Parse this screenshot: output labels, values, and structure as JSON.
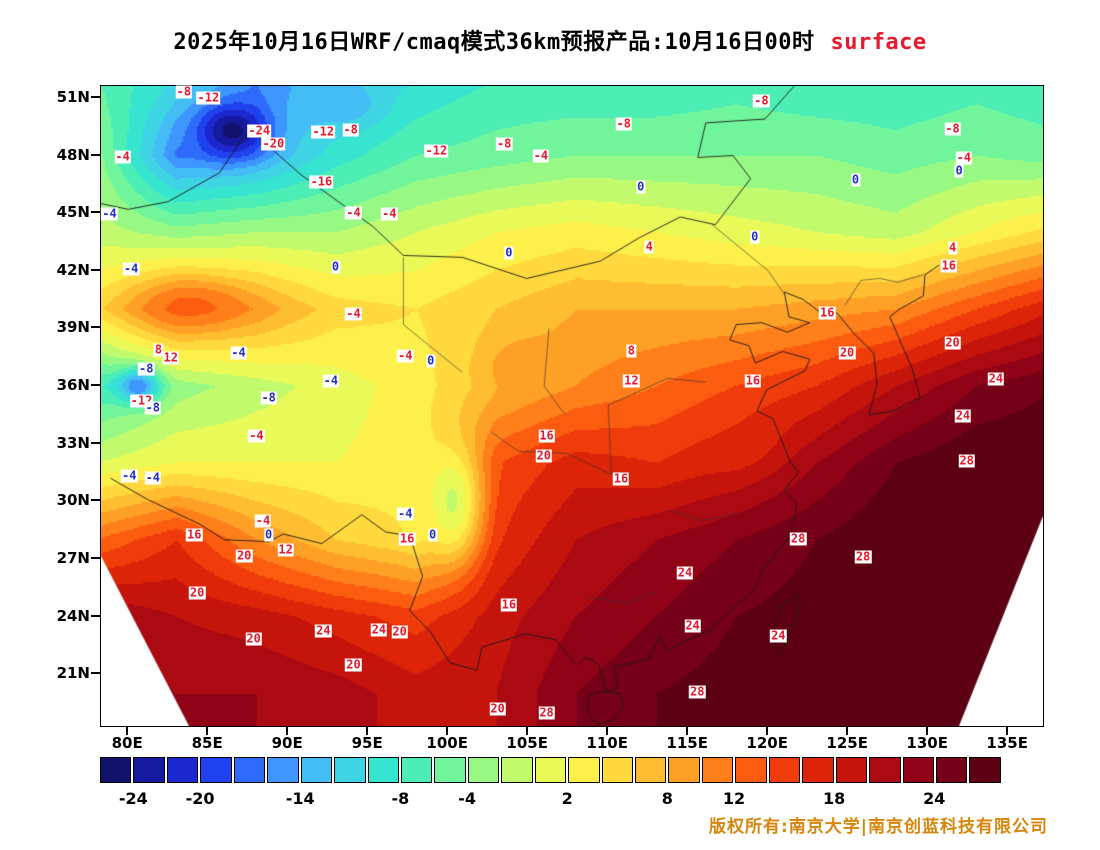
{
  "title": {
    "main": "2025年10月16日WRF/cmaq模式36km预报产品:10月16日00时",
    "tag": "surface"
  },
  "colors": {
    "title_tag": "#e8192c",
    "copyright": "#d8860b",
    "label_red": "#e8192c",
    "label_blue": "#2230cf"
  },
  "axes": {
    "lat_ticks": [
      "51N",
      "48N",
      "45N",
      "42N",
      "39N",
      "36N",
      "33N",
      "30N",
      "27N",
      "24N",
      "21N"
    ],
    "lon_ticks": [
      "80E",
      "85E",
      "90E",
      "95E",
      "100E",
      "105E",
      "110E",
      "115E",
      "120E",
      "125E",
      "130E",
      "135E"
    ]
  },
  "colorbar": {
    "tick_values": [
      -24,
      -20,
      -14,
      -8,
      -4,
      2,
      8,
      12,
      18,
      24
    ],
    "vmin": -26,
    "vmax": 28,
    "step": 2
  },
  "chart_data": {
    "type": "heatmap",
    "title": "2025年10月16日WRF/cmaq模式36km预报产品:10月16日00时 surface",
    "variable": "surface temperature contour field",
    "lon_range_labels": [
      80,
      135
    ],
    "lat_range_labels": [
      21,
      51
    ],
    "levels_min": -26,
    "levels_max": 28,
    "levels_step": 2,
    "palette": [
      "#10126b",
      "#161a9e",
      "#1c27cf",
      "#2041ee",
      "#2f6bfb",
      "#3e96ff",
      "#44bdf5",
      "#3fd4e4",
      "#37e4cf",
      "#4deeb5",
      "#70f59c",
      "#97f984",
      "#c2fa6e",
      "#e9f957",
      "#fdf04a",
      "#ffd93e",
      "#ffbe31",
      "#ffa026",
      "#ff7f1a",
      "#fb5c10",
      "#ef3c0a",
      "#dc2408",
      "#c5140c",
      "#ab0a12",
      "#900317",
      "#760017",
      "#5e0013"
    ],
    "grid": {
      "lons": [
        78,
        83,
        88,
        93,
        98,
        103,
        108,
        113,
        118,
        123,
        128,
        133,
        138
      ],
      "lats": [
        52,
        48,
        44,
        40,
        36,
        32,
        28,
        24,
        20
      ],
      "temps": [
        [
          -6,
          -10,
          -16,
          -12,
          -10,
          -8,
          -8,
          -8,
          -7,
          -8,
          -8,
          -7,
          -8
        ],
        [
          -3,
          -16,
          -14,
          -9,
          -6,
          -5,
          -4,
          -4,
          -4,
          -4,
          -5,
          -4,
          -5
        ],
        [
          -1,
          -3,
          -2,
          -2,
          0,
          2,
          3,
          2,
          1,
          0,
          -1,
          2,
          5
        ],
        [
          5,
          11,
          9,
          5,
          4,
          6,
          8,
          8,
          8,
          9,
          10,
          14,
          18
        ],
        [
          -8,
          -3,
          -1,
          1,
          3,
          7,
          10,
          12,
          14,
          16,
          20,
          24,
          26
        ],
        [
          0,
          2,
          2,
          2,
          3,
          14,
          17,
          16,
          18,
          22,
          26,
          28,
          28
        ],
        [
          12,
          16,
          10,
          6,
          4,
          16,
          20,
          22,
          24,
          26,
          28,
          28,
          28
        ],
        [
          22,
          20,
          19,
          17,
          15,
          19,
          22,
          24,
          26,
          27,
          28,
          28,
          28
        ],
        [
          24,
          22,
          22,
          21,
          19,
          20,
          24,
          26,
          27,
          28,
          28,
          28,
          28
        ]
      ]
    },
    "spots": [
      {
        "lon": 86.5,
        "lat": 49.3,
        "rx": 2.2,
        "ry": 1.4,
        "v": -26,
        "w": 0.9
      },
      {
        "lon": 93.5,
        "lat": 50.6,
        "rx": 2.4,
        "ry": 1.2,
        "v": -14,
        "w": 0.8
      },
      {
        "lon": 80.6,
        "lat": 36.0,
        "rx": 1.3,
        "ry": 0.9,
        "v": -17,
        "w": 0.9
      },
      {
        "lon": 84.0,
        "lat": 40.2,
        "rx": 3.4,
        "ry": 1.3,
        "v": 13,
        "w": 0.85
      },
      {
        "lon": 100.3,
        "lat": 30.0,
        "rx": 1.7,
        "ry": 2.9,
        "v": -2,
        "w": 0.85
      },
      {
        "lon": 104.5,
        "lat": 37.0,
        "rx": 2.2,
        "ry": 1.4,
        "v": 11,
        "w": 0.6
      },
      {
        "lon": 118.5,
        "lat": 33.0,
        "rx": 2.5,
        "ry": 1.6,
        "v": 16,
        "w": 0.5
      }
    ],
    "contour_labels": [
      [
        "-8",
        8.8,
        1.0,
        "r"
      ],
      [
        "-12",
        11.4,
        1.9,
        "r"
      ],
      [
        "-24",
        16.8,
        7.0,
        "r"
      ],
      [
        "-20",
        18.3,
        9.1,
        "r"
      ],
      [
        "-12",
        23.6,
        7.2,
        "r"
      ],
      [
        "-8",
        26.5,
        6.9,
        "r"
      ],
      [
        "-12",
        35.6,
        10.2,
        "r"
      ],
      [
        "-8",
        42.8,
        9.1,
        "r"
      ],
      [
        "-4",
        46.7,
        10.9,
        "r"
      ],
      [
        "-8",
        55.5,
        5.9,
        "r"
      ],
      [
        "-8",
        70.1,
        2.3,
        "r"
      ],
      [
        "-8",
        90.4,
        6.7,
        "r"
      ],
      [
        "-4",
        2.3,
        11.1,
        "r"
      ],
      [
        "-16",
        23.4,
        15.0,
        "r"
      ],
      [
        "-4",
        0.9,
        20.0,
        "b"
      ],
      [
        "0",
        57.3,
        15.8,
        "b"
      ],
      [
        "0",
        80.1,
        14.7,
        "b"
      ],
      [
        "-4",
        91.6,
        11.3,
        "r"
      ],
      [
        "0",
        91.1,
        13.3,
        "b"
      ],
      [
        "-4",
        26.8,
        19.8,
        "r"
      ],
      [
        "-4",
        30.6,
        20.0,
        "r"
      ],
      [
        "0",
        43.3,
        26.1,
        "b"
      ],
      [
        "4",
        58.2,
        25.2,
        "r"
      ],
      [
        "0",
        69.4,
        23.6,
        "b"
      ],
      [
        "4",
        90.4,
        25.3,
        "r"
      ],
      [
        "16",
        90.0,
        28.1,
        "r"
      ],
      [
        "-4",
        3.2,
        28.6,
        "b"
      ],
      [
        "0",
        24.9,
        28.3,
        "b"
      ],
      [
        "-4",
        26.8,
        35.6,
        "r"
      ],
      [
        "8",
        6.1,
        41.3,
        "r"
      ],
      [
        "12",
        7.4,
        42.5,
        "r"
      ],
      [
        "-4",
        14.6,
        41.7,
        "b"
      ],
      [
        "-4",
        32.3,
        42.2,
        "r"
      ],
      [
        "0",
        35.0,
        43.0,
        "b"
      ],
      [
        "8",
        56.3,
        41.4,
        "r"
      ],
      [
        "16",
        77.1,
        35.5,
        "r"
      ],
      [
        "20",
        79.2,
        41.7,
        "r"
      ],
      [
        "20",
        90.4,
        40.2,
        "r"
      ],
      [
        "-8",
        4.8,
        44.2,
        "b"
      ],
      [
        "-12",
        4.3,
        49.2,
        "r"
      ],
      [
        "-8",
        5.5,
        50.3,
        "b"
      ],
      [
        "-4",
        24.4,
        46.1,
        "b"
      ],
      [
        "-8",
        17.8,
        48.8,
        "b"
      ],
      [
        "12",
        56.3,
        46.1,
        "r"
      ],
      [
        "16",
        69.2,
        46.1,
        "r"
      ],
      [
        "24",
        95.0,
        45.8,
        "r"
      ],
      [
        "-4",
        16.5,
        54.7,
        "r"
      ],
      [
        "16",
        47.3,
        54.7,
        "r"
      ],
      [
        "20",
        47.0,
        57.8,
        "r"
      ],
      [
        "24",
        91.5,
        51.6,
        "r"
      ],
      [
        "16",
        55.2,
        61.4,
        "r"
      ],
      [
        "28",
        91.9,
        58.6,
        "r"
      ],
      [
        "-4",
        3.0,
        60.9,
        "b"
      ],
      [
        "-4",
        5.5,
        61.3,
        "b"
      ],
      [
        "-4",
        17.2,
        68.0,
        "r"
      ],
      [
        "0",
        17.8,
        70.2,
        "b"
      ],
      [
        "-4",
        32.3,
        66.9,
        "b"
      ],
      [
        "16",
        9.9,
        70.2,
        "r"
      ],
      [
        "20",
        15.2,
        73.4,
        "r"
      ],
      [
        "12",
        19.6,
        72.5,
        "r"
      ],
      [
        "16",
        32.5,
        70.8,
        "r"
      ],
      [
        "0",
        35.2,
        70.2,
        "b"
      ],
      [
        "28",
        74.0,
        70.8,
        "r"
      ],
      [
        "20",
        10.2,
        79.2,
        "r"
      ],
      [
        "24",
        62.0,
        76.1,
        "r"
      ],
      [
        "28",
        80.9,
        73.6,
        "r"
      ],
      [
        "16",
        43.3,
        81.1,
        "r"
      ],
      [
        "20",
        16.2,
        86.4,
        "r"
      ],
      [
        "24",
        23.6,
        85.2,
        "r"
      ],
      [
        "24",
        29.5,
        85.0,
        "r"
      ],
      [
        "20",
        31.7,
        85.3,
        "r"
      ],
      [
        "24",
        62.8,
        84.4,
        "r"
      ],
      [
        "24",
        71.9,
        85.9,
        "r"
      ],
      [
        "20",
        26.8,
        90.5,
        "r"
      ],
      [
        "28",
        63.3,
        94.7,
        "r"
      ],
      [
        "20",
        42.1,
        97.3,
        "r"
      ],
      [
        "28",
        47.3,
        98.0,
        "r"
      ]
    ]
  },
  "footer": {
    "copyright": "版权所有:南京大学|南京创蓝科技有限公司"
  }
}
